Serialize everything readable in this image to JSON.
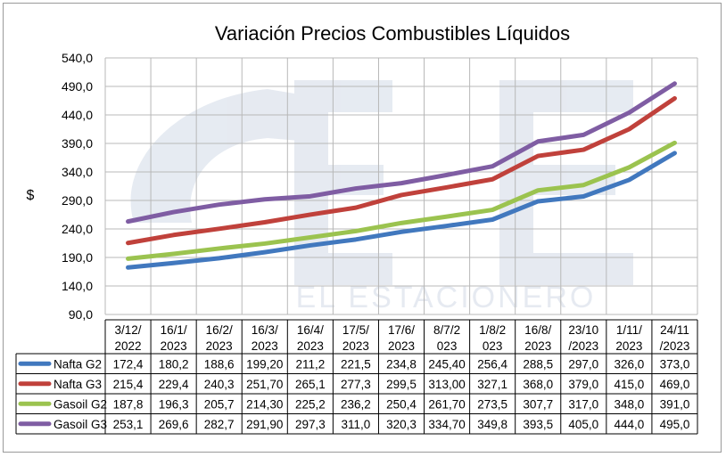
{
  "chart_data": {
    "type": "line",
    "title": "Variación Precios Combustibles Líquidos",
    "ylabel": "$",
    "xlabel": "",
    "ylim": [
      90,
      540
    ],
    "yticks": [
      "90,0",
      "140,0",
      "190,0",
      "240,0",
      "290,0",
      "340,0",
      "390,0",
      "440,0",
      "490,0",
      "540,0"
    ],
    "ytick_values": [
      90,
      140,
      190,
      240,
      290,
      340,
      390,
      440,
      490,
      540
    ],
    "categories": [
      [
        "3/12/",
        "2022"
      ],
      [
        "16/1/",
        "2023"
      ],
      [
        "16/2/",
        "2023"
      ],
      [
        "16/3/",
        "2023"
      ],
      [
        "16/4/",
        "2023"
      ],
      [
        "17/5/",
        "2023"
      ],
      [
        "17/6/",
        "2023"
      ],
      [
        "8/7/2",
        "023"
      ],
      [
        "1/8/2",
        "023"
      ],
      [
        "16/8/",
        "2023"
      ],
      [
        "23/10",
        "/2023"
      ],
      [
        "1/11/",
        "2023"
      ],
      [
        "24/11",
        "/2023"
      ]
    ],
    "grid": true,
    "legend": "data-table",
    "series": [
      {
        "name": "Nafta G2",
        "color": "#4178be",
        "values": [
          172.4,
          180.2,
          188.6,
          199.2,
          211.2,
          221.5,
          234.8,
          245.4,
          256.4,
          288.5,
          297.0,
          326.0,
          373.0
        ],
        "labels": [
          "172,4",
          "180,2",
          "188,6",
          "199,20",
          "211,2",
          "221,5",
          "234,8",
          "245,40",
          "256,4",
          "288,5",
          "297,0",
          "326,0",
          "373,0"
        ]
      },
      {
        "name": "Nafta G3",
        "color": "#c0413b",
        "values": [
          215.4,
          229.4,
          240.3,
          251.7,
          265.1,
          277.3,
          299.5,
          313.0,
          327.1,
          368.0,
          379.0,
          415.0,
          469.0
        ],
        "labels": [
          "215,4",
          "229,4",
          "240,3",
          "251,70",
          "265,1",
          "277,3",
          "299,5",
          "313,00",
          "327,1",
          "368,0",
          "379,0",
          "415,0",
          "469,0"
        ]
      },
      {
        "name": "Gasoil G2",
        "color": "#9bc34f",
        "values": [
          187.8,
          196.3,
          205.7,
          214.3,
          225.2,
          236.2,
          250.4,
          261.7,
          273.5,
          307.7,
          317.0,
          348.0,
          391.0
        ],
        "labels": [
          "187,8",
          "196,3",
          "205,7",
          "214,30",
          "225,2",
          "236,2",
          "250,4",
          "261,70",
          "273,5",
          "307,7",
          "317,0",
          "348,0",
          "391,0"
        ]
      },
      {
        "name": "Gasoil G3",
        "color": "#7f5da3",
        "values": [
          253.1,
          269.6,
          282.7,
          291.9,
          297.3,
          311.0,
          320.3,
          334.7,
          349.8,
          393.5,
          405.0,
          444.0,
          495.0
        ],
        "labels": [
          "253,1",
          "269,6",
          "282,7",
          "291,90",
          "297,3",
          "311,0",
          "320,3",
          "334,70",
          "349,8",
          "393,5",
          "405,0",
          "444,0",
          "495,0"
        ]
      }
    ]
  },
  "watermark": {
    "text": "EL ESTACIONERO"
  }
}
